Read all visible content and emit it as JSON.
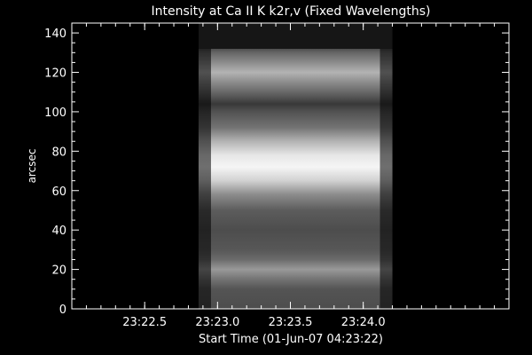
{
  "chart_data": {
    "type": "heatmap",
    "title": "Intensity at Ca II K k2r,v (Fixed Wavelengths)",
    "xlabel": "Start Time (01-Jun-07 04:23:22)",
    "ylabel": "arcsec",
    "xlim": [
      1342.0,
      1345.0
    ],
    "ylim": [
      0,
      145
    ],
    "x_ticks": [
      {
        "value": 1342.5,
        "label": "23:22.5"
      },
      {
        "value": 1343.0,
        "label": "23:23.0"
      },
      {
        "value": 1343.5,
        "label": "23:23.5"
      },
      {
        "value": 1344.0,
        "label": "23:24.0"
      }
    ],
    "y_ticks": [
      {
        "value": 0,
        "label": "0"
      },
      {
        "value": 20,
        "label": "20"
      },
      {
        "value": 40,
        "label": "40"
      },
      {
        "value": 60,
        "label": "60"
      },
      {
        "value": 80,
        "label": "80"
      },
      {
        "value": 100,
        "label": "100"
      },
      {
        "value": 120,
        "label": "120"
      },
      {
        "value": 140,
        "label": "140"
      }
    ],
    "colormap": "grayscale",
    "background_color": "#000000",
    "axis_color": "#ffffff",
    "data_extent": {
      "x": [
        1342.87,
        1344.2
      ],
      "y": [
        0,
        132
      ]
    },
    "intensity_profile": [
      {
        "y": 0,
        "v": 0.3
      },
      {
        "y": 10,
        "v": 0.33
      },
      {
        "y": 15,
        "v": 0.45
      },
      {
        "y": 20,
        "v": 0.6
      },
      {
        "y": 25,
        "v": 0.42
      },
      {
        "y": 30,
        "v": 0.34
      },
      {
        "y": 40,
        "v": 0.3
      },
      {
        "y": 50,
        "v": 0.36
      },
      {
        "y": 58,
        "v": 0.55
      },
      {
        "y": 65,
        "v": 0.82
      },
      {
        "y": 72,
        "v": 0.96
      },
      {
        "y": 78,
        "v": 0.9
      },
      {
        "y": 85,
        "v": 0.7
      },
      {
        "y": 92,
        "v": 0.45
      },
      {
        "y": 100,
        "v": 0.32
      },
      {
        "y": 104,
        "v": 0.22
      },
      {
        "y": 108,
        "v": 0.35
      },
      {
        "y": 115,
        "v": 0.55
      },
      {
        "y": 120,
        "v": 0.7
      },
      {
        "y": 125,
        "v": 0.55
      },
      {
        "y": 130,
        "v": 0.4
      },
      {
        "y": 132,
        "v": 0.3
      }
    ]
  }
}
